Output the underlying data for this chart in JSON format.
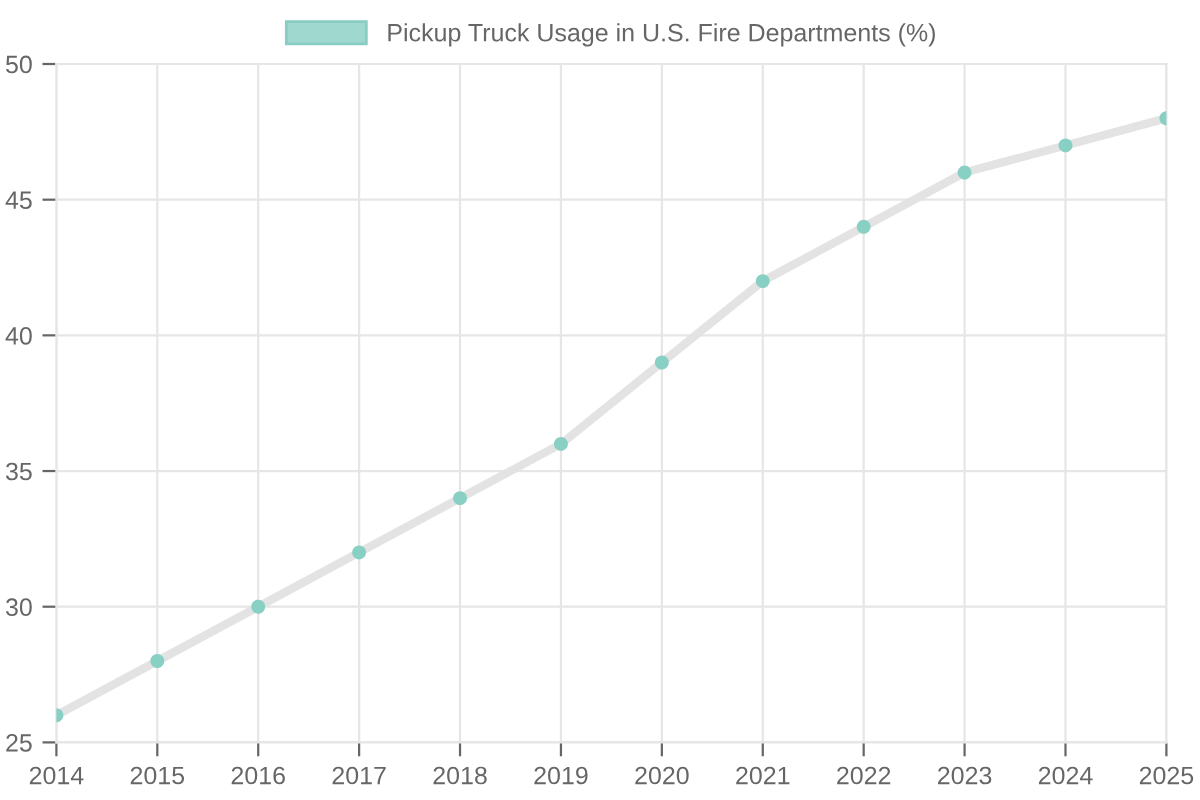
{
  "chart_data": {
    "type": "line",
    "categories": [
      "2014",
      "2015",
      "2016",
      "2017",
      "2018",
      "2019",
      "2020",
      "2021",
      "2022",
      "2023",
      "2024",
      "2025"
    ],
    "series": [
      {
        "name": "Pickup Truck Usage in U.S. Fire Departments (%)",
        "color": "#e3e3e3",
        "colors": [
          "#88cfc4",
          "#88cfc4",
          "#88cfc4",
          "#88cfc4",
          "#88cfc4",
          "#88cfc4",
          "#88cfc4",
          "#88cfc4",
          "#88cfc4",
          "#88cfc4",
          "#88cfc4",
          "#88cfc4"
        ],
        "values": [
          26,
          28,
          30,
          32,
          34,
          36,
          39,
          42,
          44,
          46,
          47,
          48
        ]
      }
    ],
    "ylim": [
      25,
      50
    ],
    "yticks": [
      25,
      30,
      35,
      40,
      45,
      50
    ],
    "grid": true,
    "legend": "top",
    "marker": "circle",
    "line_style": "solid"
  }
}
